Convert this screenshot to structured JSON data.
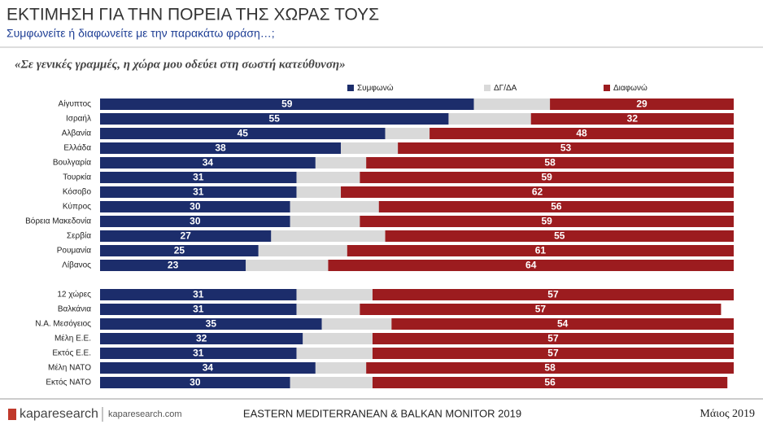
{
  "chart_data": {
    "type": "stacked-barh",
    "title": "ΕΚΤΙΜΗΣΗ ΓΙΑ ΤΗΝ ΠΟΡΕΙΑ ΤΗΣ ΧΩΡΑΣ ΤΟΥΣ",
    "subtitle": "Συμφωνείτε ή διαφωνείτε με την παρακάτω φράση…;",
    "question": "«Σε γενικές γραμμές, η χώρα μου οδεύει στη σωστή κατεύθυνση»",
    "categories": [
      "Αίγυπτος",
      "Ισραήλ",
      "Αλβανία",
      "Ελλάδα",
      "Βουλγαρία",
      "Τουρκία",
      "Κόσοβο",
      "Κύπρος",
      "Βόρεια Μακεδονία",
      "Σερβία",
      "Ρουμανία",
      "Λίβανος",
      null,
      "12 χώρες",
      "Βαλκάνια",
      "Ν.Α. Μεσόγειος",
      "Μέλη Ε.Ε.",
      "Εκτός Ε.Ε.",
      "Μέλη ΝΑΤΟ",
      "Εκτός ΝΑΤΟ"
    ],
    "series": [
      {
        "name": "Συμφωνώ",
        "color": "#1c2d6b",
        "labeled": true,
        "values": [
          59,
          55,
          45,
          38,
          34,
          31,
          31,
          30,
          30,
          27,
          25,
          23,
          null,
          31,
          31,
          35,
          32,
          31,
          34,
          30
        ]
      },
      {
        "name": "ΔΓ/ΔΑ",
        "color": "#d9d9d9",
        "labeled": false,
        "values": [
          12,
          13,
          7,
          9,
          8,
          10,
          7,
          14,
          11,
          18,
          14,
          13,
          null,
          12,
          10,
          11,
          11,
          12,
          8,
          13
        ]
      },
      {
        "name": "Διαφωνώ",
        "color": "#9c1c1f",
        "labeled": true,
        "values": [
          29,
          32,
          48,
          53,
          58,
          59,
          62,
          56,
          59,
          55,
          61,
          64,
          null,
          57,
          57,
          54,
          57,
          57,
          58,
          56
        ]
      }
    ],
    "xlim": [
      0,
      100
    ],
    "footer": {
      "brand": "kaparesearch",
      "site": "kaparesearch.com",
      "monitor": "EASTERN MEDITERRANEAN & BALKAN MONITOR 2019",
      "date": "Μάιος 2019"
    }
  }
}
